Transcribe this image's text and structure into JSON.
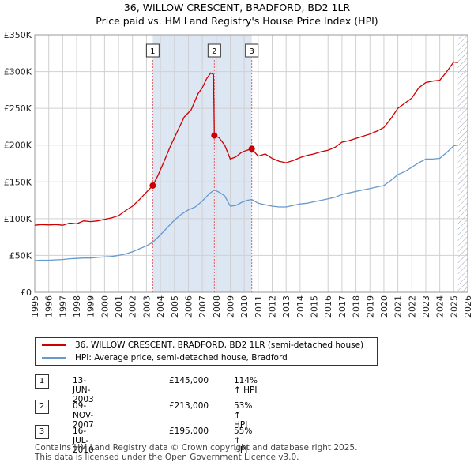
{
  "title_line1": "36, WILLOW CRESCENT, BRADFORD, BD2 1LR",
  "title_line2": "Price paid vs. HM Land Registry's House Price Index (HPI)",
  "chart_data": {
    "type": "line",
    "x_range": [
      1995,
      2026
    ],
    "y_range": [
      0,
      350000
    ],
    "x_ticks": [
      "1995",
      "1996",
      "1997",
      "1998",
      "1999",
      "2000",
      "2001",
      "2002",
      "2003",
      "2004",
      "2005",
      "2006",
      "2007",
      "2008",
      "2009",
      "2010",
      "2011",
      "2012",
      "2013",
      "2014",
      "2015",
      "2016",
      "2017",
      "2018",
      "2019",
      "2020",
      "2021",
      "2022",
      "2023",
      "2024",
      "2025",
      "2026"
    ],
    "y_ticks": [
      {
        "value": 0,
        "label": "£0"
      },
      {
        "value": 50000,
        "label": "£50K"
      },
      {
        "value": 100000,
        "label": "£100K"
      },
      {
        "value": 150000,
        "label": "£150K"
      },
      {
        "value": 200000,
        "label": "£200K"
      },
      {
        "value": 250000,
        "label": "£250K"
      },
      {
        "value": 300000,
        "label": "£300K"
      },
      {
        "value": 350000,
        "label": "£350K"
      }
    ],
    "grid": true,
    "shaded_period": [
      2003.45,
      2010.54
    ],
    "data_end": 2025.3,
    "series": [
      {
        "name": "36, WILLOW CRESCENT, BRADFORD, BD2 1LR (semi-detached house)",
        "color": "#cc0000",
        "points": [
          [
            1995.0,
            91000
          ],
          [
            1995.5,
            92000
          ],
          [
            1996.0,
            91500
          ],
          [
            1996.5,
            92000
          ],
          [
            1997.0,
            91000
          ],
          [
            1997.5,
            94000
          ],
          [
            1998.0,
            93000
          ],
          [
            1998.5,
            97000
          ],
          [
            1999.0,
            96000
          ],
          [
            1999.5,
            97000
          ],
          [
            2000.0,
            99000
          ],
          [
            2000.5,
            101000
          ],
          [
            2001.0,
            104000
          ],
          [
            2001.5,
            111000
          ],
          [
            2002.0,
            117000
          ],
          [
            2002.5,
            126000
          ],
          [
            2003.0,
            136000
          ],
          [
            2003.45,
            145000
          ],
          [
            2003.8,
            158000
          ],
          [
            2004.2,
            175000
          ],
          [
            2004.7,
            198000
          ],
          [
            2005.2,
            218000
          ],
          [
            2005.7,
            238000
          ],
          [
            2006.2,
            248000
          ],
          [
            2006.7,
            270000
          ],
          [
            2007.0,
            278000
          ],
          [
            2007.3,
            290000
          ],
          [
            2007.6,
            298000
          ],
          [
            2007.8,
            296000
          ],
          [
            2007.86,
            213000
          ],
          [
            2008.2,
            210000
          ],
          [
            2008.6,
            200000
          ],
          [
            2009.0,
            181000
          ],
          [
            2009.4,
            184000
          ],
          [
            2009.8,
            190000
          ],
          [
            2010.2,
            193000
          ],
          [
            2010.54,
            195000
          ],
          [
            2011.0,
            185000
          ],
          [
            2011.5,
            188000
          ],
          [
            2012.0,
            182000
          ],
          [
            2012.5,
            178000
          ],
          [
            2013.0,
            176000
          ],
          [
            2013.5,
            179000
          ],
          [
            2014.0,
            183000
          ],
          [
            2014.5,
            186000
          ],
          [
            2015.0,
            188000
          ],
          [
            2015.5,
            191000
          ],
          [
            2016.0,
            193000
          ],
          [
            2016.5,
            197000
          ],
          [
            2017.0,
            204000
          ],
          [
            2017.5,
            206000
          ],
          [
            2018.0,
            209000
          ],
          [
            2018.5,
            212000
          ],
          [
            2019.0,
            215000
          ],
          [
            2019.5,
            219000
          ],
          [
            2020.0,
            224000
          ],
          [
            2020.5,
            236000
          ],
          [
            2021.0,
            250000
          ],
          [
            2021.5,
            257000
          ],
          [
            2022.0,
            264000
          ],
          [
            2022.5,
            278000
          ],
          [
            2023.0,
            285000
          ],
          [
            2023.5,
            287000
          ],
          [
            2024.0,
            288000
          ],
          [
            2024.5,
            300000
          ],
          [
            2025.0,
            313000
          ],
          [
            2025.3,
            312000
          ]
        ]
      },
      {
        "name": "HPI: Average price, semi-detached house, Bradford",
        "color": "#6699cc",
        "points": [
          [
            1995.0,
            43000
          ],
          [
            1995.5,
            43500
          ],
          [
            1996.0,
            43500
          ],
          [
            1996.5,
            44000
          ],
          [
            1997.0,
            44500
          ],
          [
            1997.5,
            45500
          ],
          [
            1998.0,
            46000
          ],
          [
            1998.5,
            46500
          ],
          [
            1999.0,
            46500
          ],
          [
            1999.5,
            47500
          ],
          [
            2000.0,
            48000
          ],
          [
            2000.5,
            48500
          ],
          [
            2001.0,
            50000
          ],
          [
            2001.5,
            52000
          ],
          [
            2002.0,
            55000
          ],
          [
            2002.5,
            59000
          ],
          [
            2003.0,
            63000
          ],
          [
            2003.45,
            68000
          ],
          [
            2004.0,
            78000
          ],
          [
            2004.5,
            88000
          ],
          [
            2005.0,
            98000
          ],
          [
            2005.5,
            106000
          ],
          [
            2006.0,
            112000
          ],
          [
            2006.5,
            116000
          ],
          [
            2007.0,
            124000
          ],
          [
            2007.5,
            134000
          ],
          [
            2007.86,
            139000
          ],
          [
            2008.2,
            136000
          ],
          [
            2008.6,
            131000
          ],
          [
            2009.0,
            117000
          ],
          [
            2009.4,
            118000
          ],
          [
            2009.8,
            122000
          ],
          [
            2010.2,
            125000
          ],
          [
            2010.54,
            126000
          ],
          [
            2011.0,
            121000
          ],
          [
            2011.5,
            119000
          ],
          [
            2012.0,
            117000
          ],
          [
            2012.5,
            116000
          ],
          [
            2013.0,
            116000
          ],
          [
            2013.5,
            118000
          ],
          [
            2014.0,
            120000
          ],
          [
            2014.5,
            121000
          ],
          [
            2015.0,
            123000
          ],
          [
            2015.5,
            125000
          ],
          [
            2016.0,
            127000
          ],
          [
            2016.5,
            129000
          ],
          [
            2017.0,
            133000
          ],
          [
            2017.5,
            135000
          ],
          [
            2018.0,
            137000
          ],
          [
            2018.5,
            139000
          ],
          [
            2019.0,
            141000
          ],
          [
            2019.5,
            143000
          ],
          [
            2020.0,
            145000
          ],
          [
            2020.5,
            152000
          ],
          [
            2021.0,
            160000
          ],
          [
            2021.5,
            164000
          ],
          [
            2022.0,
            170000
          ],
          [
            2022.5,
            176000
          ],
          [
            2023.0,
            181000
          ],
          [
            2023.5,
            181000
          ],
          [
            2024.0,
            182000
          ],
          [
            2024.5,
            190000
          ],
          [
            2025.0,
            199000
          ],
          [
            2025.3,
            200000
          ]
        ]
      }
    ],
    "markers": [
      {
        "label": "1",
        "x": 2003.45,
        "y": 145000
      },
      {
        "label": "2",
        "x": 2007.86,
        "y": 213000
      },
      {
        "label": "3",
        "x": 2010.54,
        "y": 195000
      }
    ]
  },
  "legend": {
    "items": [
      {
        "label": "36, WILLOW CRESCENT, BRADFORD, BD2 1LR (semi-detached house)",
        "color": "#cc0000"
      },
      {
        "label": "HPI: Average price, semi-detached house, Bradford",
        "color": "#6699cc"
      }
    ]
  },
  "transactions": [
    {
      "num": "1",
      "date": "13-JUN-2003",
      "price": "£145,000",
      "hpi": "114% ↑ HPI"
    },
    {
      "num": "2",
      "date": "09-NOV-2007",
      "price": "£213,000",
      "hpi": "53% ↑ HPI"
    },
    {
      "num": "3",
      "date": "16-JUL-2010",
      "price": "£195,000",
      "hpi": "55% ↑ HPI"
    }
  ],
  "footer": {
    "line1": "Contains HM Land Registry data © Crown copyright and database right 2025.",
    "line2": "This data is licensed under the Open Government Licence v3.0."
  }
}
